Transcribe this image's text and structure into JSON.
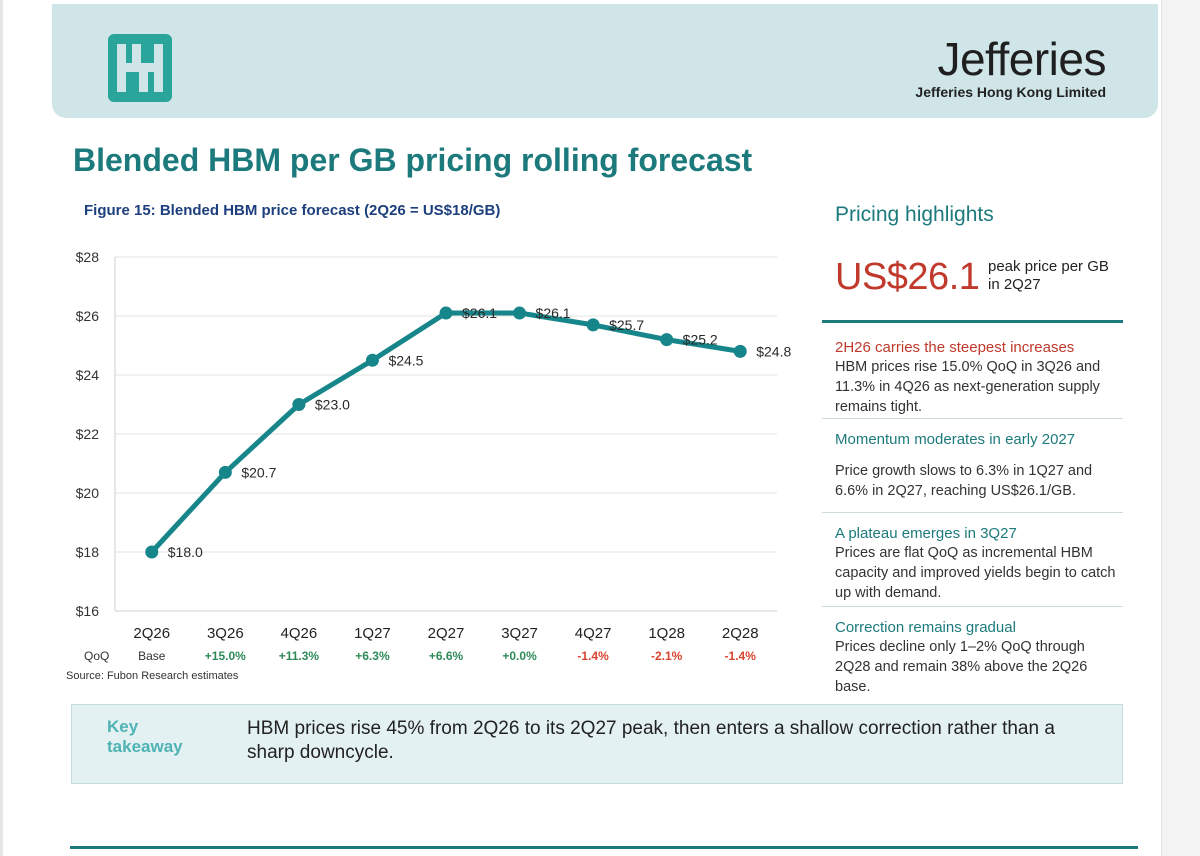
{
  "header": {
    "company": "Jefferies",
    "company_sub": "Jefferies Hong Kong Limited"
  },
  "page_title": "Blended HBM per GB pricing rolling forecast",
  "figure_title": "Figure 15: Blended HBM price forecast (2Q26 = US$18/GB)",
  "source": "Source: Fubon Research estimates",
  "qoq_label": "QoQ",
  "qoq": [
    "Base",
    "+15.0%",
    "+11.3%",
    "+6.3%",
    "+6.6%",
    "+0.0%",
    "-1.4%",
    "-2.1%",
    "-1.4%"
  ],
  "colors": {
    "teal": "#1c7a7c",
    "line": "#16868a",
    "positive": "#2e8b57",
    "negative": "#d9442f",
    "accent_red": "#c0392b"
  },
  "chart_data": {
    "type": "line",
    "categories": [
      "2Q26",
      "3Q26",
      "4Q26",
      "1Q27",
      "2Q27",
      "3Q27",
      "4Q27",
      "1Q28",
      "2Q28"
    ],
    "values": [
      18.0,
      20.7,
      23.0,
      24.5,
      26.1,
      26.1,
      25.7,
      25.2,
      24.8
    ],
    "data_labels": [
      "$18.0",
      "$20.7",
      "$23.0",
      "$24.5",
      "$26.1",
      "$26.1",
      "$25.7",
      "$25.2",
      "$24.8"
    ],
    "yticks": [
      "$16",
      "$18",
      "$20",
      "$22",
      "$24",
      "$26",
      "$28"
    ],
    "ylim": [
      16,
      28
    ],
    "grid": true,
    "title": "Figure 15: Blended HBM price forecast (2Q26 = US$18/GB)",
    "xlabel": "",
    "ylabel": ""
  },
  "sidebar": {
    "title": "Pricing highlights",
    "peak_value": "US$26.1",
    "peak_desc": "peak price per GB in 2Q27",
    "highlights": [
      {
        "heading": "2H26 carries the steepest increases",
        "heading_color": "#c0392b",
        "body": "HBM prices rise 15.0% QoQ in 3Q26 and 11.3% in 4Q26 as next-generation supply remains tight."
      },
      {
        "heading": "Momentum moderates in early 2027",
        "heading_color": "#1c7a7c",
        "body": "Price growth slows to 6.3% in 1Q27 and 6.6% in 2Q27, reaching US$26.1/GB."
      },
      {
        "heading": "A plateau emerges in 3Q27",
        "heading_color": "#1c7a7c",
        "body": "Prices are flat QoQ as incremental HBM capacity and improved yields begin to catch up with demand."
      },
      {
        "heading": "Correction remains gradual",
        "heading_color": "#1c7a7c",
        "body": "Prices decline only 1–2% QoQ through 2Q28 and remain 38% above the 2Q26 base."
      }
    ]
  },
  "takeaway": {
    "label": "Key takeaway",
    "text": "HBM prices rise 45% from 2Q26 to its 2Q27 peak, then enters a shallow correction rather than a sharp downcycle."
  }
}
